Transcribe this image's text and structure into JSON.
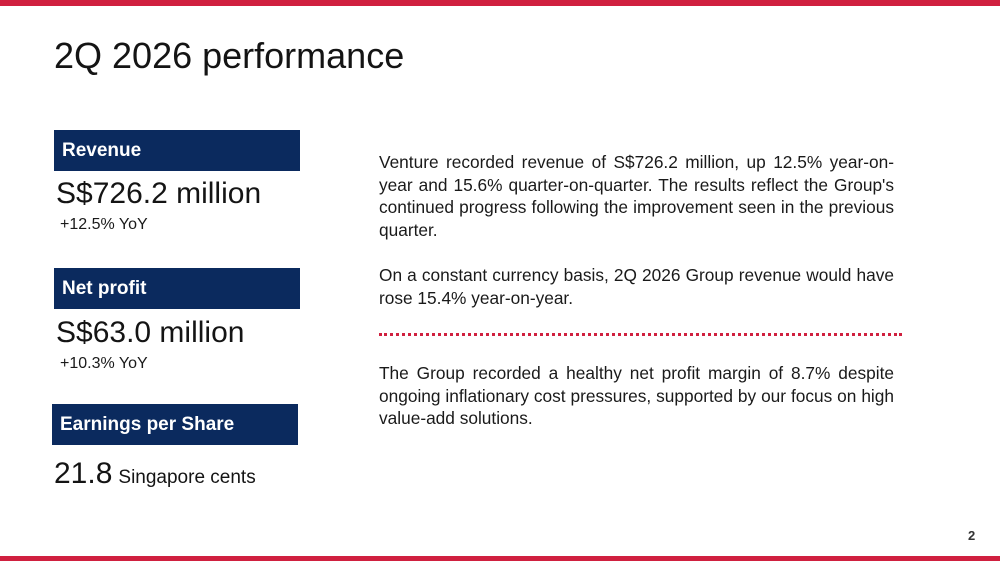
{
  "slide": {
    "title": "2Q 2026 performance",
    "page_number": "2"
  },
  "metrics": {
    "revenue": {
      "label": "Revenue",
      "value": "S$726.2 million",
      "change": "+12.5% YoY"
    },
    "net_profit": {
      "label": "Net profit",
      "value": "S$63.0 million",
      "change": "+10.3% YoY"
    },
    "eps": {
      "label": "Earnings per Share",
      "value": "21.8",
      "unit": "Singapore cents"
    }
  },
  "commentary": {
    "paragraph_1": "Venture recorded revenue of S$726.2 million, up 12.5% year-on-year and 15.6% quarter-on-quarter. The results reflect the Group's continued progress following the improvement seen in the previous quarter.",
    "paragraph_2": "On a constant currency basis, 2Q 2026 Group revenue would have rose 15.4% year-on-year.",
    "paragraph_3": "The Group recorded a healthy net profit margin of 8.7% despite ongoing inflationary cost pressures, supported by our focus on high value-add solutions."
  },
  "colors": {
    "accent": "#d0203f",
    "label_background": "#0b2a5e",
    "label_text": "#ffffff"
  }
}
